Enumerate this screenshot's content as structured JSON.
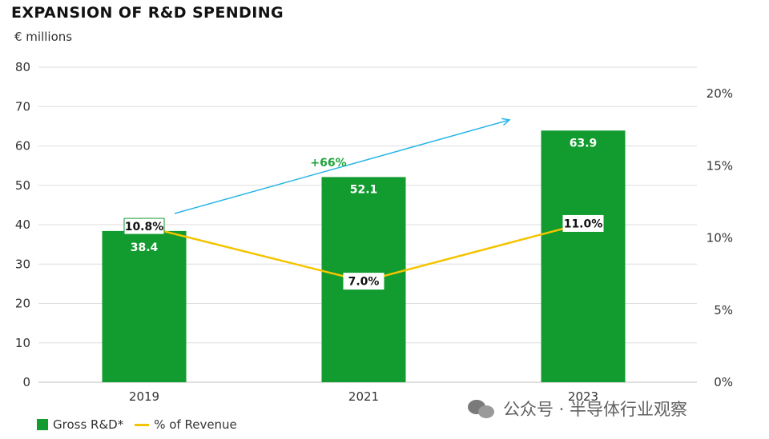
{
  "chart_data": {
    "type": "bar",
    "title": "EXPANSION OF R&D SPENDING",
    "subtitle": "€ millions",
    "categories": [
      "2019",
      "2021",
      "2023"
    ],
    "series": [
      {
        "name": "Gross R&D*",
        "type": "bar",
        "axis": "left",
        "values": [
          38.4,
          52.1,
          63.9
        ],
        "labels": [
          "38.4",
          "52.1",
          "63.9"
        ],
        "color": "#129b2f"
      },
      {
        "name": "% of Revenue",
        "type": "line",
        "axis": "right",
        "values": [
          10.8,
          7.0,
          11.0
        ],
        "labels": [
          "10.8%",
          "7.0%",
          "11.0%"
        ],
        "color": "#f5c400"
      }
    ],
    "left_axis": {
      "min": 0,
      "max": 80,
      "ticks": [
        "0",
        "10",
        "20",
        "30",
        "40",
        "50",
        "60",
        "70",
        "80"
      ]
    },
    "right_axis": {
      "min": 0,
      "max": 20,
      "ticks": [
        "0%",
        "5%",
        "10%",
        "15%",
        "20%"
      ]
    },
    "annotation": {
      "text": "+66%",
      "color": "#1ea33b",
      "arrow_color": "#29b6e6"
    },
    "grid": true,
    "legend": "bottom-left"
  },
  "watermark": "公众号 · 半导体行业观察"
}
